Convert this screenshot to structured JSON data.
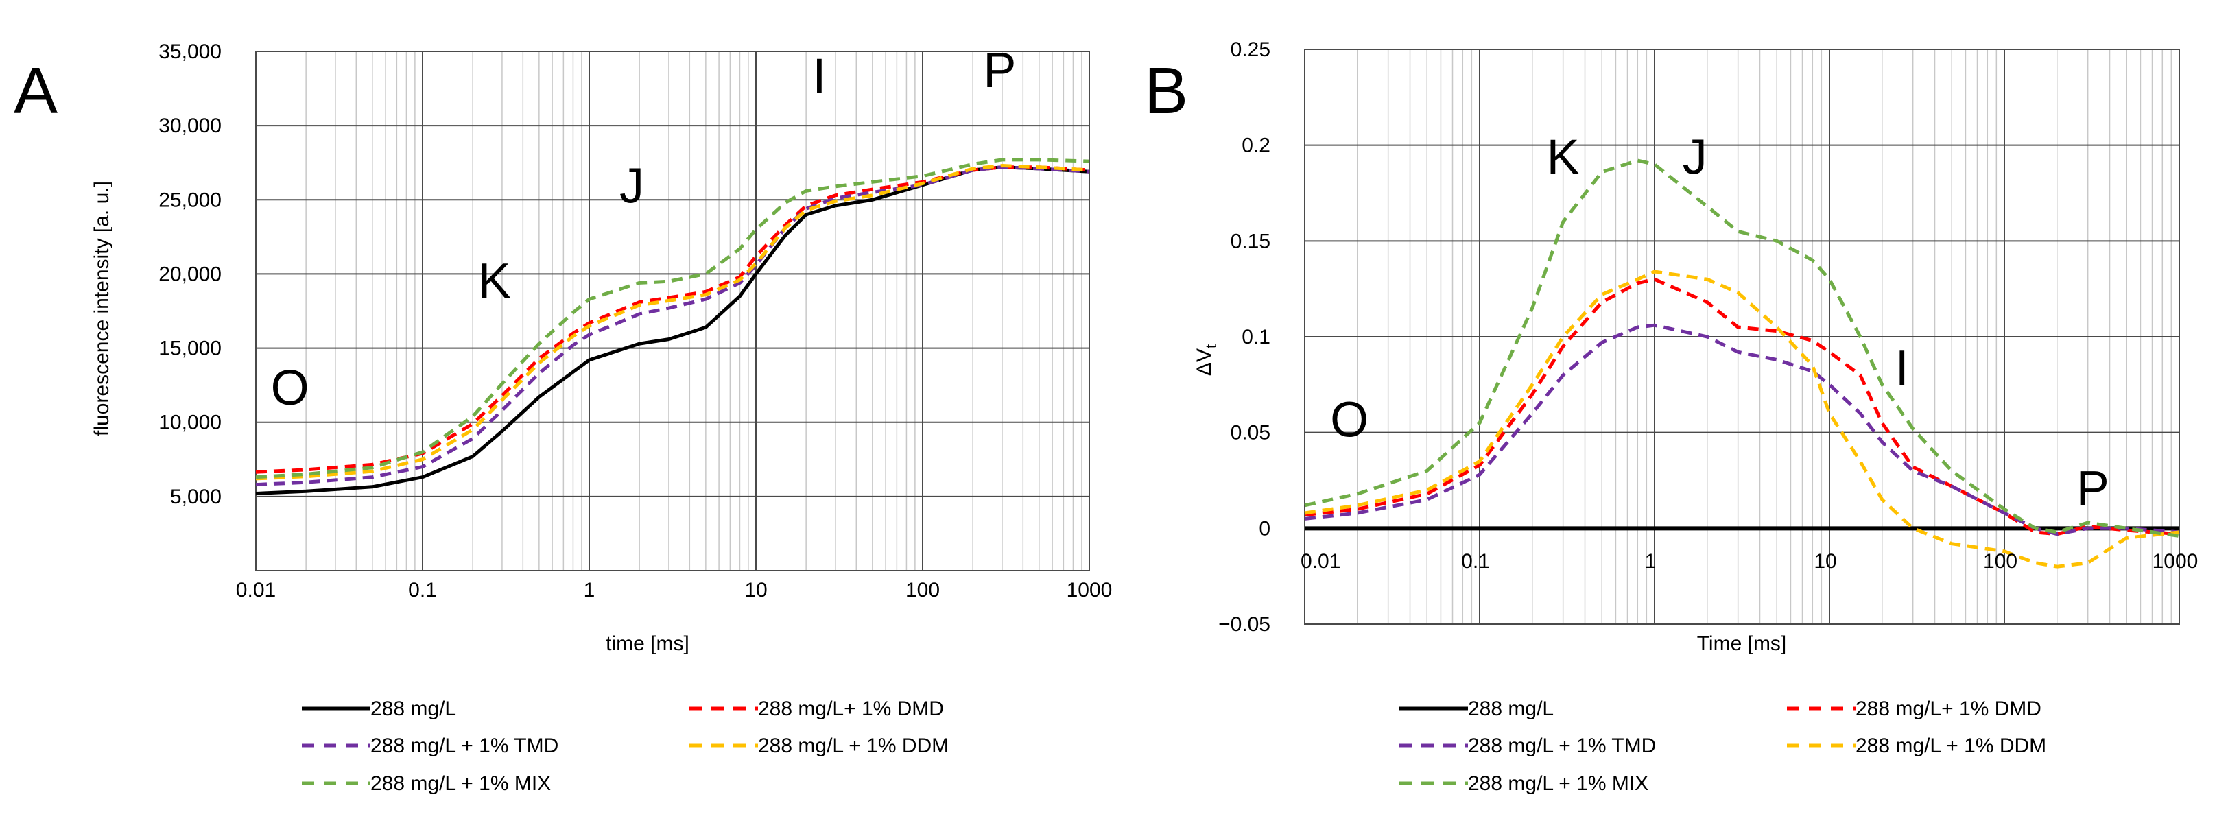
{
  "chart_data": [
    {
      "type": "line",
      "panel_label": "A",
      "xscale": "log",
      "xlim": [
        0.01,
        1000
      ],
      "ylim": [
        0,
        35000
      ],
      "xlabel": "time [ms]",
      "ylabel": "fluorescence intensity [a. u.]",
      "xticks": [
        0.01,
        0.1,
        1,
        10,
        100,
        1000
      ],
      "xtick_labels": [
        "0.01",
        "0.1",
        "1",
        "10",
        "100",
        "1000"
      ],
      "yticks": [
        5000,
        10000,
        15000,
        20000,
        25000,
        30000,
        35000
      ],
      "ytick_labels": [
        "5,000",
        "10,000",
        "15,000",
        "20,000",
        "25,000",
        "30,000",
        "35,000"
      ],
      "grid": true,
      "phase_labels": [
        {
          "text": "O",
          "x": 0.016,
          "y": 11200
        },
        {
          "text": "K",
          "x": 0.27,
          "y": 18400
        },
        {
          "text": "J",
          "x": 1.8,
          "y": 24800
        },
        {
          "text": "I",
          "x": 24,
          "y": 32200
        },
        {
          "text": "P",
          "x": 290,
          "y": 32600
        }
      ],
      "x": [
        0.01,
        0.02,
        0.05,
        0.1,
        0.2,
        0.3,
        0.5,
        0.8,
        1,
        2,
        3,
        5,
        8,
        10,
        15,
        20,
        30,
        50,
        100,
        200,
        300,
        500,
        1000
      ],
      "series": [
        {
          "name": "288 mg/L",
          "color": "#000000",
          "style": "solid",
          "values": [
            5200,
            5350,
            5650,
            6300,
            7700,
            9400,
            11700,
            13400,
            14200,
            15300,
            15600,
            16400,
            18500,
            20000,
            22600,
            24000,
            24600,
            25000,
            26000,
            27000,
            27200,
            27100,
            26900
          ]
        },
        {
          "name": "288 mg/L+ 1% DMD",
          "color": "#ff0000",
          "style": "dashed",
          "values": [
            6650,
            6800,
            7150,
            7900,
            9900,
            11800,
            14300,
            16000,
            16700,
            18100,
            18400,
            18800,
            19800,
            21200,
            23300,
            24600,
            25300,
            25700,
            26200,
            27000,
            27200,
            27200,
            27000
          ]
        },
        {
          "name": "288 mg/L + 1% TMD",
          "color": "#7030a0",
          "style": "dashed",
          "values": [
            5800,
            5950,
            6300,
            7000,
            8900,
            10800,
            13300,
            15200,
            15900,
            17300,
            17700,
            18300,
            19400,
            20600,
            23100,
            24400,
            25100,
            25500,
            26000,
            27000,
            27200,
            27100,
            26900
          ]
        },
        {
          "name": "288 mg/L + 1% DDM",
          "color": "#ffc000",
          "style": "dashed",
          "values": [
            6200,
            6350,
            6700,
            7500,
            9500,
            11500,
            14000,
            15800,
            16500,
            17900,
            18200,
            18600,
            19600,
            20700,
            23100,
            24300,
            24900,
            25300,
            26100,
            27100,
            27300,
            27200,
            27000
          ]
        },
        {
          "name": "288 mg/L + 1% MIX",
          "color": "#70ad47",
          "style": "dashed",
          "values": [
            6300,
            6500,
            6950,
            8000,
            10400,
            12600,
            15300,
            17400,
            18300,
            19400,
            19500,
            20000,
            21700,
            23000,
            24800,
            25600,
            25900,
            26200,
            26600,
            27400,
            27700,
            27700,
            27600
          ]
        }
      ]
    },
    {
      "type": "line",
      "panel_label": "B",
      "xscale": "log",
      "xlim": [
        0.01,
        1000
      ],
      "ylim": [
        -0.05,
        0.25
      ],
      "xlabel": "Time [ms]",
      "ylabel": "ΔV",
      "ylabel_subscript": "t",
      "xticks": [
        0.01,
        0.1,
        1,
        10,
        100,
        1000
      ],
      "xtick_labels": [
        "0.01",
        "0.1",
        "1",
        "10",
        "100",
        "1000"
      ],
      "yticks": [
        -0.05,
        0,
        0.05,
        0.1,
        0.15,
        0.2,
        0.25
      ],
      "ytick_labels": [
        "−0.05",
        "0",
        "0.05",
        "0.1",
        "0.15",
        "0.2",
        "0.25"
      ],
      "grid": true,
      "phase_labels": [
        {
          "text": "O",
          "x": 0.018,
          "y": 0.048
        },
        {
          "text": "K",
          "x": 0.3,
          "y": 0.185
        },
        {
          "text": "J",
          "x": 1.7,
          "y": 0.185
        },
        {
          "text": "I",
          "x": 26,
          "y": 0.075
        },
        {
          "text": "P",
          "x": 320,
          "y": 0.012
        }
      ],
      "x": [
        0.01,
        0.02,
        0.05,
        0.1,
        0.2,
        0.3,
        0.5,
        0.8,
        1,
        2,
        3,
        5,
        8,
        10,
        15,
        20,
        30,
        50,
        100,
        150,
        200,
        300,
        500,
        1000
      ],
      "series": [
        {
          "name": "288 mg/L",
          "color": "#000000",
          "style": "solid",
          "values": [
            0,
            0,
            0,
            0,
            0,
            0,
            0,
            0,
            0,
            0,
            0,
            0,
            0,
            0,
            0,
            0,
            0,
            0,
            0,
            0,
            0,
            0,
            0,
            0
          ]
        },
        {
          "name": "288 mg/L+ 1% DMD",
          "color": "#ff0000",
          "style": "dashed",
          "values": [
            0.007,
            0.01,
            0.018,
            0.033,
            0.07,
            0.095,
            0.118,
            0.128,
            0.13,
            0.118,
            0.105,
            0.103,
            0.098,
            0.092,
            0.08,
            0.055,
            0.032,
            0.022,
            0.008,
            -0.002,
            -0.003,
            0.001,
            -0.001,
            -0.003
          ]
        },
        {
          "name": "288 mg/L + 1% TMD",
          "color": "#7030a0",
          "style": "dashed",
          "values": [
            0.005,
            0.008,
            0.015,
            0.028,
            0.06,
            0.08,
            0.097,
            0.105,
            0.106,
            0.1,
            0.092,
            0.088,
            0.082,
            0.075,
            0.06,
            0.045,
            0.03,
            0.022,
            0.008,
            0,
            -0.003,
            0,
            0,
            -0.002
          ]
        },
        {
          "name": "288 mg/L + 1% DDM",
          "color": "#ffc000",
          "style": "dashed",
          "values": [
            0.008,
            0.012,
            0.02,
            0.035,
            0.075,
            0.1,
            0.122,
            0.13,
            0.134,
            0.13,
            0.123,
            0.105,
            0.085,
            0.06,
            0.035,
            0.015,
            0,
            -0.008,
            -0.012,
            -0.018,
            -0.02,
            -0.018,
            -0.005,
            -0.002
          ]
        },
        {
          "name": "288 mg/L + 1% MIX",
          "color": "#70ad47",
          "style": "dashed",
          "values": [
            0.012,
            0.018,
            0.03,
            0.055,
            0.115,
            0.16,
            0.186,
            0.192,
            0.19,
            0.168,
            0.155,
            0.15,
            0.14,
            0.13,
            0.1,
            0.075,
            0.052,
            0.03,
            0.01,
            0,
            -0.002,
            0.003,
            0,
            -0.004
          ]
        }
      ]
    }
  ]
}
